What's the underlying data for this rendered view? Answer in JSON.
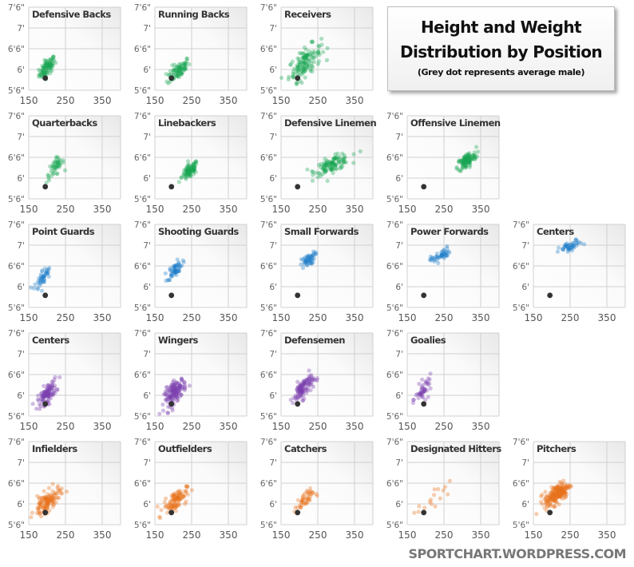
{
  "title": {
    "line1": "Height and Weight",
    "line2": "Distribution by Position",
    "subtitle": "(Grey dot represents average male)"
  },
  "footer": "SPORTCHART.WORDPRESS.COM",
  "chart_data": {
    "type": "scatter",
    "xlabel": "",
    "ylabel": "",
    "xlim": [
      150,
      400
    ],
    "ylim_inches": [
      66,
      90
    ],
    "x_ticks": [
      "150",
      "250",
      "350"
    ],
    "y_ticks": [
      "5'6\"",
      "6'",
      "6'6\"",
      "7'",
      "7'6\""
    ],
    "grid": true,
    "average_male": {
      "weight_lb": 195,
      "height_in": 69.5,
      "color": "#333333"
    },
    "colors": {
      "football": "#1aa552",
      "basketball": "#1f7fc8",
      "hockey": "#7b3fae",
      "baseball": "#e8731c"
    },
    "panels": [
      {
        "title": "Defensive Backs",
        "group": "football",
        "row": 0,
        "col": 0,
        "mean_weight": 200,
        "mean_height": 72.5,
        "sd_weight": 11,
        "sd_height": 1.5,
        "n": 90
      },
      {
        "title": "Running Backs",
        "group": "football",
        "row": 0,
        "col": 1,
        "mean_weight": 215,
        "mean_height": 71.8,
        "sd_weight": 15,
        "sd_height": 1.6,
        "n": 80
      },
      {
        "title": "Receivers",
        "group": "football",
        "row": 0,
        "col": 2,
        "mean_weight": 215,
        "mean_height": 74,
        "sd_weight": 22,
        "sd_height": 2.6,
        "n": 130
      },
      {
        "title": "Quarterbacks",
        "group": "football",
        "row": 1,
        "col": 0,
        "mean_weight": 222,
        "mean_height": 75,
        "sd_weight": 12,
        "sd_height": 1.6,
        "n": 45
      },
      {
        "title": "Linebackers",
        "group": "football",
        "row": 1,
        "col": 1,
        "mean_weight": 245,
        "mean_height": 74,
        "sd_weight": 11,
        "sd_height": 1.3,
        "n": 90
      },
      {
        "title": "Defensive Linemen",
        "group": "football",
        "row": 1,
        "col": 2,
        "mean_weight": 290,
        "mean_height": 76,
        "sd_weight": 24,
        "sd_height": 1.4,
        "n": 110
      },
      {
        "title": "Offensive Linemen",
        "group": "football",
        "row": 1,
        "col": 3,
        "mean_weight": 312,
        "mean_height": 77,
        "sd_weight": 13,
        "sd_height": 1.4,
        "n": 110
      },
      {
        "title": "Point Guards",
        "group": "basketball",
        "row": 2,
        "col": 0,
        "mean_weight": 188,
        "mean_height": 74.5,
        "sd_weight": 11,
        "sd_height": 1.6,
        "n": 45
      },
      {
        "title": "Shooting Guards",
        "group": "basketball",
        "row": 2,
        "col": 1,
        "mean_weight": 205,
        "mean_height": 77,
        "sd_weight": 10,
        "sd_height": 1.3,
        "n": 55
      },
      {
        "title": "Small Forwards",
        "group": "basketball",
        "row": 2,
        "col": 2,
        "mean_weight": 222,
        "mean_height": 79.5,
        "sd_weight": 10,
        "sd_height": 1.1,
        "n": 50
      },
      {
        "title": "Power Forwards",
        "group": "basketball",
        "row": 2,
        "col": 3,
        "mean_weight": 240,
        "mean_height": 81,
        "sd_weight": 13,
        "sd_height": 1.1,
        "n": 45
      },
      {
        "title": "Centers",
        "group": "basketball",
        "row": 2,
        "col": 4,
        "mean_weight": 252,
        "mean_height": 83.5,
        "sd_weight": 16,
        "sd_height": 1.0,
        "n": 45
      },
      {
        "title": "Centers",
        "group": "hockey",
        "row": 3,
        "col": 0,
        "mean_weight": 200,
        "mean_height": 72.5,
        "sd_weight": 13,
        "sd_height": 1.8,
        "n": 100
      },
      {
        "title": "Wingers",
        "group": "hockey",
        "row": 3,
        "col": 1,
        "mean_weight": 205,
        "mean_height": 73,
        "sd_weight": 15,
        "sd_height": 2.0,
        "n": 140
      },
      {
        "title": "Defensemen",
        "group": "hockey",
        "row": 3,
        "col": 2,
        "mean_weight": 210,
        "mean_height": 74,
        "sd_weight": 14,
        "sd_height": 1.9,
        "n": 110
      },
      {
        "title": "Goalies",
        "group": "hockey",
        "row": 3,
        "col": 3,
        "mean_weight": 195,
        "mean_height": 73.5,
        "sd_weight": 11,
        "sd_height": 1.7,
        "n": 45
      },
      {
        "title": "Infielders",
        "group": "baseball",
        "row": 4,
        "col": 0,
        "mean_weight": 200,
        "mean_height": 72.5,
        "sd_weight": 18,
        "sd_height": 1.9,
        "n": 120
      },
      {
        "title": "Outfielders",
        "group": "baseball",
        "row": 4,
        "col": 1,
        "mean_weight": 205,
        "mean_height": 73,
        "sd_weight": 16,
        "sd_height": 1.8,
        "n": 100
      },
      {
        "title": "Catchers",
        "group": "baseball",
        "row": 4,
        "col": 2,
        "mean_weight": 212,
        "mean_height": 72.8,
        "sd_weight": 13,
        "sd_height": 1.5,
        "n": 45
      },
      {
        "title": "Designated Hitters",
        "group": "baseball",
        "row": 4,
        "col": 3,
        "mean_weight": 222,
        "mean_height": 73,
        "sd_weight": 22,
        "sd_height": 2.0,
        "n": 16
      },
      {
        "title": "Pitchers",
        "group": "baseball",
        "row": 4,
        "col": 4,
        "mean_weight": 215,
        "mean_height": 75,
        "sd_weight": 17,
        "sd_height": 1.8,
        "n": 200
      }
    ]
  }
}
